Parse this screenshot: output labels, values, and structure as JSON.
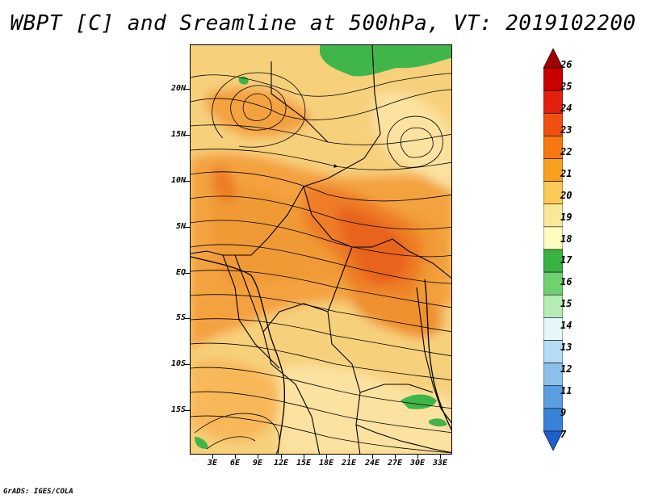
{
  "title": "WBPT [C] and Sreamline at 500hPa, VT: 2019102200",
  "footer": "GrADS: IGES/COLA",
  "lat_labels": [
    "20N",
    "15N",
    "10N",
    "5N",
    "EQ",
    "5S",
    "10S",
    "15S"
  ],
  "lon_labels": [
    "3E",
    "6E",
    "9E",
    "12E",
    "15E",
    "18E",
    "21E",
    "24E",
    "27E",
    "30E",
    "33E"
  ],
  "colorbar": {
    "levels": [
      "26",
      "25",
      "24",
      "23",
      "22",
      "21",
      "20",
      "19",
      "18",
      "17",
      "16",
      "15",
      "14",
      "13",
      "12",
      "11",
      "9",
      "7"
    ],
    "colors": [
      "#a00000",
      "#c80000",
      "#e22010",
      "#f04f10",
      "#f67810",
      "#f8a020",
      "#fcc858",
      "#fbe79a",
      "#fffcc0",
      "#39b244",
      "#6fd06f",
      "#b4ecb4",
      "#e5f7f9",
      "#b4dcf4",
      "#8cc0ea",
      "#5a9ee0",
      "#3a82d8",
      "#1e5fcf"
    ]
  },
  "field_colors": {
    "base": "#f7d07c",
    "warm": "#f4a23f",
    "hot": "#ee7d25",
    "hotter": "#e8631c",
    "cool": "#fbe2a0",
    "green": "#40b54a"
  }
}
